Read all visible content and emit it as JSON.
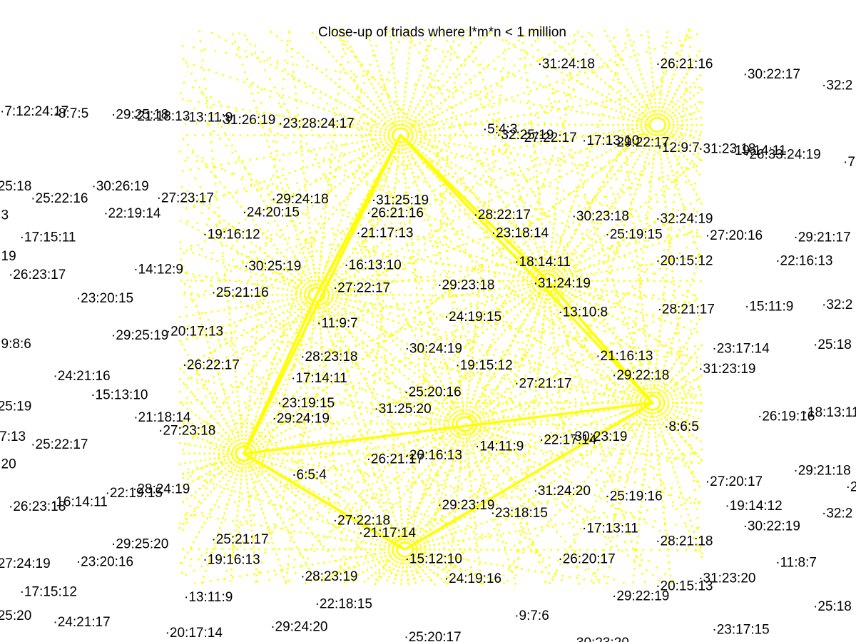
{
  "chart_data": {
    "type": "scatter",
    "title": "Close-up of triads where l*m*n < 1 million",
    "xlabel": "",
    "ylabel": "",
    "grid": false,
    "legend": "none",
    "point_color": "#ffff00",
    "label_color": "#000000",
    "labels": [
      {
        "text": "·5:4:3",
        "x": 0.564,
        "y": 0.111
      },
      {
        "text": "·6:5:4",
        "x": 0.341,
        "y": 0.709
      },
      {
        "text": "·8:6:5",
        "x": 0.776,
        "y": 0.626
      },
      {
        "text": "·11:9:7",
        "x": 0.37,
        "y": 0.447
      },
      {
        "text": "·13:10:8",
        "x": 0.652,
        "y": 0.428
      },
      {
        "text": "·14:11:9",
        "x": 0.555,
        "y": 0.66
      },
      {
        "text": "·15:12:10",
        "x": 0.473,
        "y": 0.855
      },
      {
        "text": "·12:9:7",
        "x": 0.768,
        "y": 0.143
      },
      {
        "text": "·9:7:6",
        "x": 0.601,
        "y": 0.953
      },
      {
        "text": "·31:25:19",
        "x": 0.434,
        "y": 0.234
      },
      {
        "text": "·26:21:16",
        "x": 0.428,
        "y": 0.256
      },
      {
        "text": "·28:22:17",
        "x": 0.553,
        "y": 0.259
      },
      {
        "text": "·30:23:18",
        "x": 0.668,
        "y": 0.262
      },
      {
        "text": "·32:24:19",
        "x": 0.766,
        "y": 0.266
      },
      {
        "text": "·21:17:13",
        "x": 0.416,
        "y": 0.291
      },
      {
        "text": "·23:18:14",
        "x": 0.574,
        "y": 0.291
      },
      {
        "text": "·25:19:15",
        "x": 0.707,
        "y": 0.293
      },
      {
        "text": "·27:20:16",
        "x": 0.824,
        "y": 0.295
      },
      {
        "text": "·16:13:10",
        "x": 0.402,
        "y": 0.346
      },
      {
        "text": "·18:14:11",
        "x": 0.601,
        "y": 0.341
      },
      {
        "text": "·20:15:12",
        "x": 0.766,
        "y": 0.339
      },
      {
        "text": "·29:23:18",
        "x": 0.511,
        "y": 0.381
      },
      {
        "text": "·31:24:19",
        "x": 0.623,
        "y": 0.378
      },
      {
        "text": "·27:22:17",
        "x": 0.389,
        "y": 0.386
      },
      {
        "text": "·28:21:17",
        "x": 0.768,
        "y": 0.423
      },
      {
        "text": "·24:19:15",
        "x": 0.519,
        "y": 0.436
      },
      {
        "text": "·30:24:19",
        "x": 0.473,
        "y": 0.491
      },
      {
        "text": "·28:23:18",
        "x": 0.351,
        "y": 0.505
      },
      {
        "text": "·19:15:12",
        "x": 0.532,
        "y": 0.52
      },
      {
        "text": "·21:16:13",
        "x": 0.696,
        "y": 0.504
      },
      {
        "text": "·17:14:11",
        "x": 0.34,
        "y": 0.542
      },
      {
        "text": "·29:22:18",
        "x": 0.715,
        "y": 0.537
      },
      {
        "text": "·27:21:17",
        "x": 0.601,
        "y": 0.551
      },
      {
        "text": "·25:20:16",
        "x": 0.472,
        "y": 0.566
      },
      {
        "text": "·23:19:15",
        "x": 0.324,
        "y": 0.585
      },
      {
        "text": "·31:25:20",
        "x": 0.437,
        "y": 0.595
      },
      {
        "text": "·29:24:19",
        "x": 0.318,
        "y": 0.612
      },
      {
        "text": "·30:23:19",
        "x": 0.666,
        "y": 0.643
      },
      {
        "text": "·22:17:14",
        "x": 0.63,
        "y": 0.649
      },
      {
        "text": "·20:16:13",
        "x": 0.473,
        "y": 0.675
      },
      {
        "text": "·26:21:17",
        "x": 0.428,
        "y": 0.682
      },
      {
        "text": "·31:24:20",
        "x": 0.623,
        "y": 0.737
      },
      {
        "text": "·25:19:16",
        "x": 0.707,
        "y": 0.746
      },
      {
        "text": "·29:23:19",
        "x": 0.511,
        "y": 0.762
      },
      {
        "text": "·23:18:15",
        "x": 0.573,
        "y": 0.775
      },
      {
        "text": "·27:22:18",
        "x": 0.389,
        "y": 0.788
      },
      {
        "text": "·17:13:11",
        "x": 0.68,
        "y": 0.802
      },
      {
        "text": "·21:17:14",
        "x": 0.419,
        "y": 0.81
      },
      {
        "text": "·28:21:18",
        "x": 0.766,
        "y": 0.824
      },
      {
        "text": "·26:20:17",
        "x": 0.652,
        "y": 0.855
      },
      {
        "text": "·24:19:16",
        "x": 0.519,
        "y": 0.889
      },
      {
        "text": "·20:15:13",
        "x": 0.766,
        "y": 0.902
      },
      {
        "text": "·31:23:20",
        "x": 0.816,
        "y": 0.888
      },
      {
        "text": "·29:22:19",
        "x": 0.715,
        "y": 0.919
      },
      {
        "text": "·32:25:19",
        "x": 0.58,
        "y": 0.121
      },
      {
        "text": "·27:22:17",
        "x": 0.607,
        "y": 0.126
      },
      {
        "text": "·17:13:10",
        "x": 0.68,
        "y": 0.131
      },
      {
        "text": "·29:22:17",
        "x": 0.715,
        "y": 0.134
      },
      {
        "text": "·31:23:18",
        "x": 0.816,
        "y": 0.145
      },
      {
        "text": "·19:14:11",
        "x": 0.853,
        "y": 0.148
      },
      {
        "text": "·26:33:24:19",
        "x": 0.87,
        "y": 0.155
      },
      {
        "text": "·23:28:24:17",
        "x": 0.325,
        "y": 0.101
      },
      {
        "text": "·13:11:9",
        "x": 0.215,
        "y": 0.091
      },
      {
        "text": "·29:25:18",
        "x": 0.13,
        "y": 0.086
      },
      {
        "text": "·21:18:13",
        "x": 0.155,
        "y": 0.089
      },
      {
        "text": "·31:26:19",
        "x": 0.255,
        "y": 0.095
      },
      {
        "text": "·8:7:5",
        "x": 0.063,
        "y": 0.084
      },
      {
        "text": "·7:12:24:17",
        "x": 0.0,
        "y": 0.08
      },
      {
        "text": "·30:22:17",
        "x": 0.868,
        "y": 0.016
      },
      {
        "text": "·25:22:16",
        "x": 0.036,
        "y": 0.231
      },
      {
        "text": "·30:26:19",
        "x": 0.107,
        "y": 0.21
      },
      {
        "text": "·27:23:17",
        "x": 0.183,
        "y": 0.23
      },
      {
        "text": "·22:19:14",
        "x": 0.121,
        "y": 0.257
      },
      {
        "text": "·29:24:18",
        "x": 0.317,
        "y": 0.232
      },
      {
        "text": "·24:20:15",
        "x": 0.283,
        "y": 0.255
      },
      {
        "text": "·19:16:12",
        "x": 0.237,
        "y": 0.293
      },
      {
        "text": "·17:15:11",
        "x": 0.023,
        "y": 0.298
      },
      {
        "text": "·14:12:9",
        "x": 0.156,
        "y": 0.354
      },
      {
        "text": "·30:25:19",
        "x": 0.285,
        "y": 0.348
      },
      {
        "text": "·26:23:17",
        "x": 0.01,
        "y": 0.363
      },
      {
        "text": "·25:21:16",
        "x": 0.247,
        "y": 0.394
      },
      {
        "text": "·23:20:15",
        "x": 0.089,
        "y": 0.404
      },
      {
        "text": "·29:25:19",
        "x": 0.13,
        "y": 0.468
      },
      {
        "text": "·20:17:13",
        "x": 0.194,
        "y": 0.461
      },
      {
        "text": "·26:22:17",
        "x": 0.213,
        "y": 0.519
      },
      {
        "text": "·24:21:16",
        "x": 0.062,
        "y": 0.538
      },
      {
        "text": "·15:13:10",
        "x": 0.106,
        "y": 0.571
      },
      {
        "text": "·21:18:14",
        "x": 0.156,
        "y": 0.61
      },
      {
        "text": "·27:23:18",
        "x": 0.185,
        "y": 0.633
      },
      {
        "text": "·25:22:17",
        "x": 0.036,
        "y": 0.657
      },
      {
        "text": "·28:24:19",
        "x": 0.155,
        "y": 0.734
      },
      {
        "text": "·22:19:15",
        "x": 0.123,
        "y": 0.741
      },
      {
        "text": "·16:14:11",
        "x": 0.06,
        "y": 0.756
      },
      {
        "text": "·26:23:18",
        "x": 0.01,
        "y": 0.764
      },
      {
        "text": "·25:21:17",
        "x": 0.247,
        "y": 0.821
      },
      {
        "text": "·19:16:13",
        "x": 0.237,
        "y": 0.856
      },
      {
        "text": "·29:25:20",
        "x": 0.13,
        "y": 0.829
      },
      {
        "text": "·23:20:16",
        "x": 0.089,
        "y": 0.86
      },
      {
        "text": "·28:23:19",
        "x": 0.351,
        "y": 0.885
      },
      {
        "text": "·13:11:9",
        "x": 0.215,
        "y": 0.921
      },
      {
        "text": "·22:18:15",
        "x": 0.368,
        "y": 0.933
      },
      {
        "text": "·17:15:12",
        "x": 0.023,
        "y": 0.912
      },
      {
        "text": "·24:21:17",
        "x": 0.062,
        "y": 0.964
      },
      {
        "text": "·29:24:20",
        "x": 0.316,
        "y": 0.972
      },
      {
        "text": "·20:17:14",
        "x": 0.193,
        "y": 0.983
      },
      {
        "text": "·25:20:17",
        "x": 0.472,
        "y": 0.99
      },
      {
        "text": "·29:21:17",
        "x": 0.927,
        "y": 0.298
      },
      {
        "text": "·22:16:13",
        "x": 0.906,
        "y": 0.339
      },
      {
        "text": "·15:11:9",
        "x": 0.87,
        "y": 0.418
      },
      {
        "text": "·23:17:14",
        "x": 0.832,
        "y": 0.491
      },
      {
        "text": "·31:23:19",
        "x": 0.816,
        "y": 0.526
      },
      {
        "text": "·26:19:16",
        "x": 0.885,
        "y": 0.608
      },
      {
        "text": "·18:13:11",
        "x": 0.938,
        "y": 0.601
      },
      {
        "text": "·27:20:17",
        "x": 0.824,
        "y": 0.721
      },
      {
        "text": "·29:21:18",
        "x": 0.927,
        "y": 0.702
      },
      {
        "text": "·19:14:12",
        "x": 0.847,
        "y": 0.763
      },
      {
        "text": "·30:22:19",
        "x": 0.868,
        "y": 0.798
      },
      {
        "text": "·11:8:7",
        "x": 0.906,
        "y": 0.861
      },
      {
        "text": "·23:17:15",
        "x": 0.832,
        "y": 0.977
      },
      {
        "text": "·25:18",
        "x": -0.008,
        "y": 0.21
      },
      {
        "text": "·3",
        "x": -0.004,
        "y": 0.26
      },
      {
        "text": "·19",
        "x": -0.004,
        "y": 0.331
      },
      {
        "text": "·9:8:6",
        "x": -0.004,
        "y": 0.483
      },
      {
        "text": "·25:19",
        "x": -0.008,
        "y": 0.591
      },
      {
        "text": "·7:13",
        "x": -0.006,
        "y": 0.643
      },
      {
        "text": "·20",
        "x": -0.004,
        "y": 0.691
      },
      {
        "text": "·27:24:19",
        "x": -0.008,
        "y": 0.863
      },
      {
        "text": "·25:20",
        "x": -0.008,
        "y": 0.953
      },
      {
        "text": "·32:2",
        "x": 0.96,
        "y": 0.035
      },
      {
        "text": "·7",
        "x": 0.985,
        "y": 0.168
      },
      {
        "text": "·32:2",
        "x": 0.96,
        "y": 0.415
      },
      {
        "text": "·25:18",
        "x": 0.95,
        "y": 0.484
      },
      {
        "text": "·2",
        "x": 0.988,
        "y": 0.73
      },
      {
        "text": "·32:2",
        "x": 0.96,
        "y": 0.776
      },
      {
        "text": "·25:18",
        "x": 0.95,
        "y": 0.937
      },
      {
        "text": "·31:24:18",
        "x": 0.628,
        "y": -0.002
      },
      {
        "text": "·26:21:16",
        "x": 0.766,
        "y": -0.002
      },
      {
        "text": "·30:23:20",
        "x": 0.668,
        "y": 1.0
      }
    ]
  }
}
